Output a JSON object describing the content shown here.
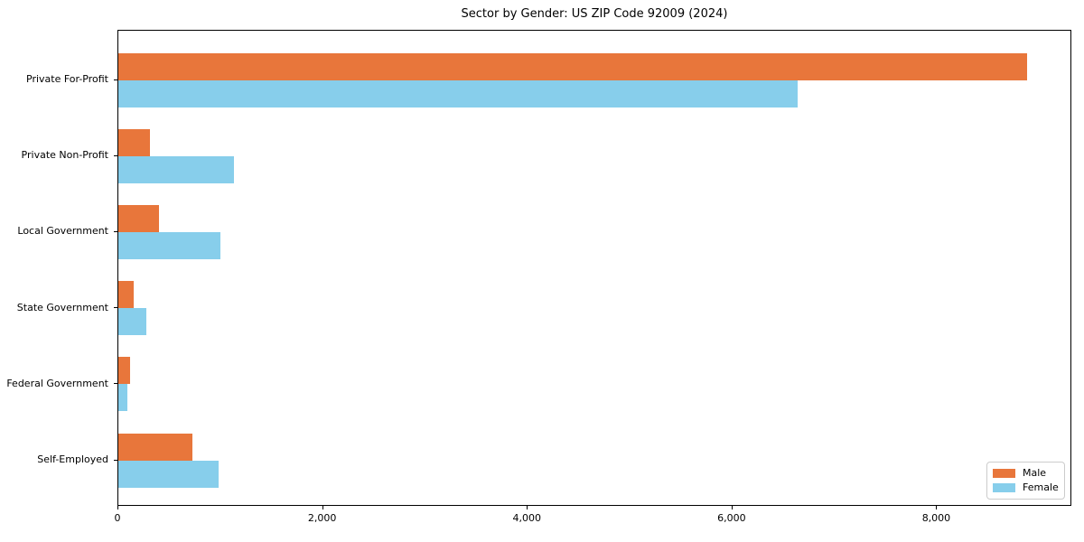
{
  "chart_data": {
    "type": "bar",
    "orientation": "horizontal",
    "title": "Sector by Gender: US ZIP Code 92009 (2024)",
    "categories": [
      "Private For-Profit",
      "Private Non-Profit",
      "Local Government",
      "State Government",
      "Federal Government",
      "Self-Employed"
    ],
    "series": [
      {
        "name": "Male",
        "color": "#e8763b",
        "values": [
          8880,
          310,
          395,
          150,
          115,
          725
        ]
      },
      {
        "name": "Female",
        "color": "#87ceeb",
        "values": [
          6640,
          1130,
          1000,
          270,
          85,
          980
        ]
      }
    ],
    "xlabel": "",
    "ylabel": "",
    "xlim": [
      0,
      9320
    ],
    "xticks": {
      "values": [
        0,
        2000,
        4000,
        6000,
        8000
      ],
      "labels": [
        "0",
        "2,000",
        "4,000",
        "6,000",
        "8,000"
      ]
    },
    "grid": false,
    "legend": {
      "position": "lower right"
    }
  }
}
